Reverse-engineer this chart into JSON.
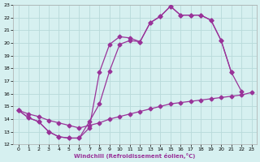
{
  "xlabel": "Windchill (Refroidissement éolien,°C)",
  "bg_color": "#d6f0f0",
  "grid_color": "#b8dada",
  "line_color": "#993399",
  "xlim": [
    -0.5,
    23.5
  ],
  "ylim": [
    12,
    23
  ],
  "xticks": [
    0,
    1,
    2,
    3,
    4,
    5,
    6,
    7,
    8,
    9,
    10,
    11,
    12,
    13,
    14,
    15,
    16,
    17,
    18,
    19,
    20,
    21,
    22,
    23
  ],
  "yticks": [
    12,
    13,
    14,
    15,
    16,
    17,
    18,
    19,
    20,
    21,
    22,
    23
  ],
  "line1_x": [
    0,
    1,
    2,
    3,
    4,
    5,
    6,
    7,
    8,
    9,
    10,
    11,
    12,
    13,
    14,
    15,
    16,
    17,
    18,
    19,
    20,
    21
  ],
  "line1_y": [
    14.7,
    14.1,
    13.8,
    13.0,
    12.6,
    12.5,
    12.5,
    13.8,
    15.2,
    17.8,
    19.9,
    20.2,
    20.1,
    21.6,
    22.1,
    22.9,
    22.2,
    22.2,
    22.2,
    21.8,
    20.2,
    17.7
  ],
  "line2_x": [
    0,
    1,
    2,
    3,
    4,
    5,
    6,
    7,
    8,
    9,
    10,
    11,
    12,
    13,
    14,
    15,
    16,
    17,
    18,
    19,
    20,
    21,
    22
  ],
  "line2_y": [
    14.7,
    14.1,
    13.8,
    13.0,
    12.6,
    12.5,
    12.5,
    13.3,
    17.7,
    19.9,
    20.5,
    20.4,
    20.1,
    21.6,
    22.1,
    22.9,
    22.2,
    22.2,
    22.2,
    21.8,
    20.2,
    17.7,
    16.2
  ],
  "line3_x": [
    0,
    1,
    2,
    3,
    4,
    5,
    6,
    7,
    8,
    9,
    10,
    11,
    12,
    13,
    14,
    15,
    16,
    17,
    18,
    19,
    20,
    21,
    22,
    23
  ],
  "line3_y": [
    14.7,
    14.4,
    14.2,
    13.9,
    13.7,
    13.5,
    13.3,
    13.5,
    13.7,
    14.0,
    14.2,
    14.4,
    14.6,
    14.8,
    15.0,
    15.2,
    15.3,
    15.4,
    15.5,
    15.6,
    15.7,
    15.8,
    15.9,
    16.1
  ],
  "marker_size": 2.5,
  "linewidth": 0.9
}
